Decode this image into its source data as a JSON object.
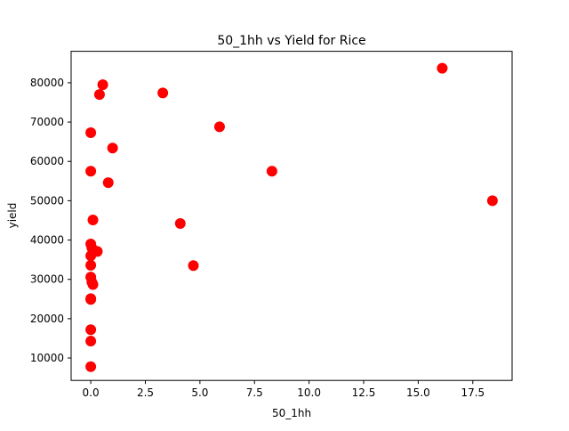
{
  "chart_data": {
    "type": "scatter",
    "title": "50_1hh vs Yield for Rice",
    "xlabel": "50_1hh",
    "ylabel": "yield",
    "xlim": [
      -0.9,
      19.3
    ],
    "ylim": [
      4300,
      88000
    ],
    "xticks": [
      0.0,
      2.5,
      5.0,
      7.5,
      10.0,
      12.5,
      15.0,
      17.5
    ],
    "xtick_labels": [
      "0.0",
      "2.5",
      "5.0",
      "7.5",
      "10.0",
      "12.5",
      "15.0",
      "17.5"
    ],
    "yticks": [
      10000,
      20000,
      30000,
      40000,
      50000,
      60000,
      70000,
      80000
    ],
    "ytick_labels": [
      "10000",
      "20000",
      "30000",
      "40000",
      "50000",
      "60000",
      "70000",
      "80000"
    ],
    "grid": false,
    "marker_color": "#ff0000",
    "points": [
      {
        "x": 16.1,
        "y": 83700
      },
      {
        "x": 0.55,
        "y": 79500
      },
      {
        "x": 3.3,
        "y": 77400
      },
      {
        "x": 0.4,
        "y": 77000
      },
      {
        "x": 5.9,
        "y": 68800
      },
      {
        "x": 0.0,
        "y": 67300
      },
      {
        "x": 1.0,
        "y": 63400
      },
      {
        "x": 0.0,
        "y": 57500
      },
      {
        "x": 8.3,
        "y": 57500
      },
      {
        "x": 0.8,
        "y": 54600
      },
      {
        "x": 18.4,
        "y": 50000
      },
      {
        "x": 0.1,
        "y": 45100
      },
      {
        "x": 4.1,
        "y": 44200
      },
      {
        "x": 0.0,
        "y": 39000
      },
      {
        "x": 0.05,
        "y": 38000
      },
      {
        "x": 0.3,
        "y": 37100
      },
      {
        "x": 0.0,
        "y": 36000
      },
      {
        "x": 0.0,
        "y": 33600
      },
      {
        "x": 4.7,
        "y": 33500
      },
      {
        "x": 0.0,
        "y": 30600
      },
      {
        "x": 0.05,
        "y": 29300
      },
      {
        "x": 0.1,
        "y": 28700
      },
      {
        "x": 0.0,
        "y": 25100
      },
      {
        "x": 0.0,
        "y": 24900
      },
      {
        "x": 0.0,
        "y": 17200
      },
      {
        "x": 0.0,
        "y": 14300
      },
      {
        "x": 0.0,
        "y": 7800
      }
    ]
  }
}
